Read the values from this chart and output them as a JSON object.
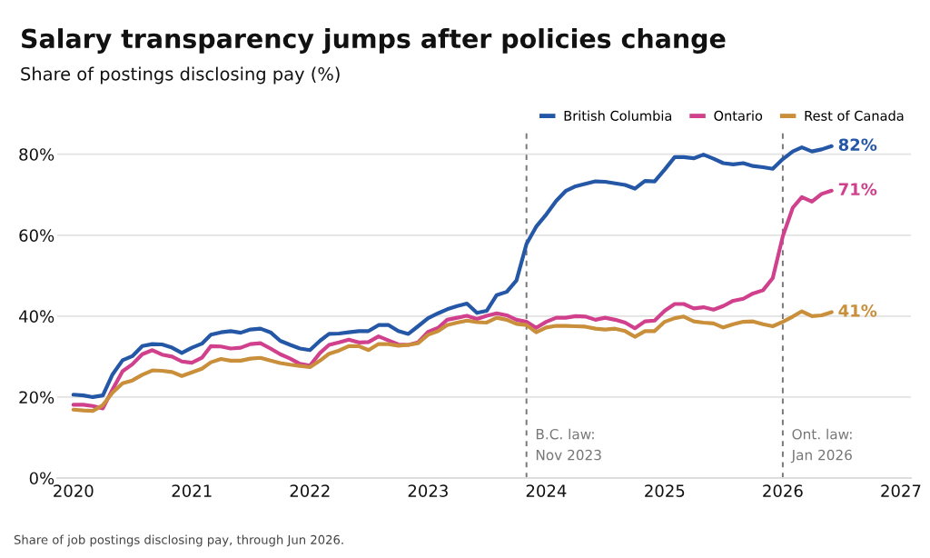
{
  "chart_data": {
    "type": "line",
    "title": "Salary transparency jumps after policies change",
    "subtitle": "Share of postings disclosing pay (%)",
    "annotations": [
      "Share of job postings disclosing pay, through Jun 2026."
    ],
    "x": [
      "2020-01",
      "2020-02",
      "2020-03",
      "2020-04",
      "2020-05",
      "2020-06",
      "2020-07",
      "2020-08",
      "2020-09",
      "2020-10",
      "2020-11",
      "2020-12",
      "2021-01",
      "2021-02",
      "2021-03",
      "2021-04",
      "2021-05",
      "2021-06",
      "2021-07",
      "2021-08",
      "2021-09",
      "2021-10",
      "2021-11",
      "2021-12",
      "2022-01",
      "2022-02",
      "2022-03",
      "2022-04",
      "2022-05",
      "2022-06",
      "2022-07",
      "2022-08",
      "2022-09",
      "2022-10",
      "2022-11",
      "2022-12",
      "2023-01",
      "2023-02",
      "2023-03",
      "2023-04",
      "2023-05",
      "2023-06",
      "2023-07",
      "2023-08",
      "2023-09",
      "2023-10",
      "2023-11",
      "2023-12",
      "2024-01",
      "2024-02",
      "2024-03",
      "2024-04",
      "2024-05",
      "2024-06",
      "2024-07",
      "2024-08",
      "2024-09",
      "2024-10",
      "2024-11",
      "2024-12",
      "2025-01",
      "2025-02",
      "2025-03",
      "2025-04",
      "2025-05",
      "2025-06",
      "2025-07",
      "2025-08",
      "2025-09",
      "2025-10",
      "2025-11",
      "2025-12",
      "2026-01",
      "2026-02",
      "2026-03",
      "2026-04",
      "2026-05",
      "2026-06"
    ],
    "series": [
      {
        "name": "British Columbia",
        "color": "#2557a7",
        "values": [
          20.6,
          20.4,
          20.0,
          20.4,
          25.6,
          29.1,
          30.1,
          32.6,
          33.1,
          33.0,
          32.2,
          30.9,
          32.2,
          33.2,
          35.4,
          36.0,
          36.3,
          35.9,
          36.7,
          36.9,
          36.0,
          33.9,
          32.9,
          32.0,
          31.6,
          33.9,
          35.6,
          35.7,
          36.0,
          36.3,
          36.3,
          37.8,
          37.8,
          36.3,
          35.6,
          37.5,
          39.5,
          40.7,
          41.7,
          42.5,
          43.1,
          40.8,
          41.3,
          45.2,
          46.0,
          48.8,
          57.8,
          62.1,
          65.1,
          68.5,
          70.9,
          72.1,
          72.7,
          73.3,
          73.2,
          72.8,
          72.4,
          71.5,
          73.4,
          73.3,
          76.2,
          79.3,
          79.3,
          79.0,
          79.9,
          78.9,
          77.8,
          77.5,
          77.8,
          77.1,
          76.8,
          76.4,
          78.8,
          80.7,
          81.7,
          80.7,
          81.2,
          82
        ],
        "value_labels": [
          null,
          null,
          null,
          null,
          null,
          null,
          null,
          null,
          null,
          null,
          null,
          null,
          null,
          null,
          null,
          null,
          null,
          null,
          null,
          null,
          null,
          null,
          null,
          null,
          null,
          null,
          null,
          null,
          null,
          null,
          null,
          null,
          null,
          null,
          null,
          null,
          null,
          null,
          null,
          null,
          null,
          null,
          null,
          null,
          null,
          null,
          null,
          null,
          null,
          null,
          null,
          null,
          null,
          null,
          null,
          null,
          null,
          null,
          null,
          null,
          null,
          null,
          null,
          null,
          null,
          null,
          null,
          null,
          null,
          null,
          null,
          null,
          null,
          null,
          null,
          null,
          null,
          "82%"
        ]
      },
      {
        "name": "Ontario",
        "color": "#d0408c",
        "values": [
          18.1,
          18.1,
          17.8,
          17.2,
          21.9,
          26.4,
          28.1,
          30.6,
          31.6,
          30.5,
          30.0,
          28.8,
          28.5,
          29.7,
          32.6,
          32.5,
          32.0,
          32.2,
          33.1,
          33.3,
          32.0,
          30.6,
          29.5,
          28.2,
          27.8,
          30.9,
          32.9,
          33.5,
          34.2,
          33.5,
          33.6,
          35.0,
          34.0,
          33.0,
          32.9,
          33.5,
          36.1,
          37.1,
          39.1,
          39.6,
          40.1,
          39.3,
          40.1,
          40.7,
          40.2,
          39.1,
          38.6,
          37.1,
          38.6,
          39.6,
          39.6,
          40.0,
          39.9,
          39.1,
          39.6,
          39.1,
          38.4,
          37.0,
          38.7,
          38.9,
          41.3,
          43.0,
          43.0,
          41.9,
          42.2,
          41.6,
          42.5,
          43.8,
          44.3,
          45.6,
          46.4,
          49.4,
          59.7,
          66.8,
          69.4,
          68.3,
          70.2,
          71
        ],
        "value_labels": [
          null,
          null,
          null,
          null,
          null,
          null,
          null,
          null,
          null,
          null,
          null,
          null,
          null,
          null,
          null,
          null,
          null,
          null,
          null,
          null,
          null,
          null,
          null,
          null,
          null,
          null,
          null,
          null,
          null,
          null,
          null,
          null,
          null,
          null,
          null,
          null,
          null,
          null,
          null,
          null,
          null,
          null,
          null,
          null,
          null,
          null,
          null,
          null,
          null,
          null,
          null,
          null,
          null,
          null,
          null,
          null,
          null,
          null,
          null,
          null,
          null,
          null,
          null,
          null,
          null,
          null,
          null,
          null,
          null,
          null,
          null,
          null,
          null,
          null,
          null,
          null,
          null,
          "71%"
        ]
      },
      {
        "name": "Rest of Canada",
        "color": "#c98f3b",
        "values": [
          16.9,
          16.7,
          16.6,
          18.0,
          21.1,
          23.4,
          24.1,
          25.5,
          26.6,
          26.5,
          26.2,
          25.2,
          26.1,
          27.0,
          28.6,
          29.4,
          29.0,
          29.0,
          29.5,
          29.7,
          29.0,
          28.4,
          28.0,
          27.7,
          27.4,
          29.0,
          30.7,
          31.5,
          32.6,
          32.6,
          31.6,
          33.1,
          33.1,
          32.7,
          32.9,
          33.3,
          35.4,
          36.3,
          37.8,
          38.4,
          38.9,
          38.5,
          38.4,
          39.6,
          39.1,
          38.1,
          37.8,
          36.0,
          37.2,
          37.6,
          37.6,
          37.5,
          37.4,
          36.9,
          36.7,
          36.9,
          36.3,
          34.9,
          36.3,
          36.3,
          38.6,
          39.5,
          39.9,
          38.7,
          38.4,
          38.2,
          37.2,
          38.0,
          38.6,
          38.7,
          38.0,
          37.5,
          38.6,
          39.9,
          41.2,
          40.0,
          40.2,
          41
        ],
        "value_labels": [
          null,
          null,
          null,
          null,
          null,
          null,
          null,
          null,
          null,
          null,
          null,
          null,
          null,
          null,
          null,
          null,
          null,
          null,
          null,
          null,
          null,
          null,
          null,
          null,
          null,
          null,
          null,
          null,
          null,
          null,
          null,
          null,
          null,
          null,
          null,
          null,
          null,
          null,
          null,
          null,
          null,
          null,
          null,
          null,
          null,
          null,
          null,
          null,
          null,
          null,
          null,
          null,
          null,
          null,
          null,
          null,
          null,
          null,
          null,
          null,
          null,
          null,
          null,
          null,
          null,
          null,
          null,
          null,
          null,
          null,
          null,
          null,
          null,
          null,
          null,
          null,
          null,
          "41%"
        ]
      }
    ],
    "xlim": [
      "2019-11-12",
      "2027-02-01"
    ],
    "xticks": [
      "2020",
      "2021",
      "2022",
      "2023",
      "2024",
      "2025",
      "2026",
      "2027"
    ],
    "ylim": [
      0,
      86
    ],
    "yticks": [
      {
        "value": 0,
        "label": "0%"
      },
      {
        "value": 20,
        "label": "20%"
      },
      {
        "value": 40,
        "label": "40%"
      },
      {
        "value": 60,
        "label": "60%"
      },
      {
        "value": 80,
        "label": "80%"
      }
    ],
    "ref_lines": [
      {
        "axis": "x",
        "value": "2023-11",
        "label": "B.C. law:\nNov 2023",
        "color": "#777777",
        "line_style": "dashed"
      },
      {
        "axis": "x",
        "value": "2026-01",
        "label": "Ont. law:\nJan 2026",
        "color": "#777777",
        "line_style": "dashed"
      }
    ],
    "grid": "y",
    "legend": "top right",
    "line_style": "solid"
  }
}
